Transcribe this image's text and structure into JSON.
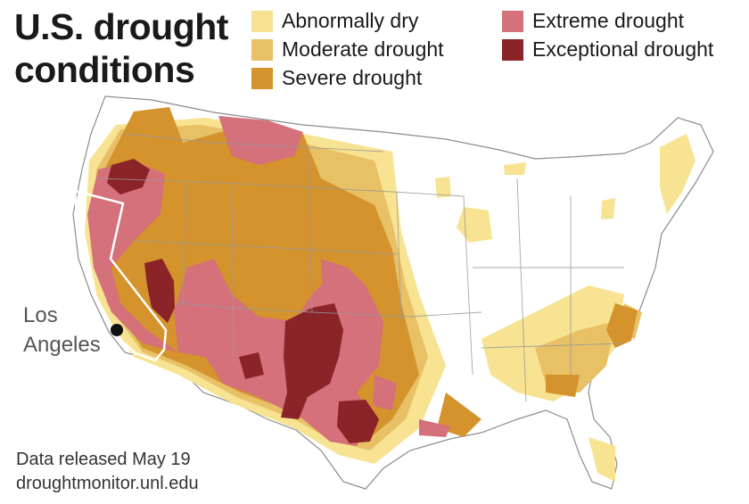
{
  "title": {
    "line1": "U.S. drought",
    "line2": "conditions"
  },
  "legend": [
    {
      "label": "Abnormally dry",
      "color": "#f7e391"
    },
    {
      "label": "Moderate drought",
      "color": "#e8c066"
    },
    {
      "label": "Severe drought",
      "color": "#d4932c"
    },
    {
      "label": "Extreme drought",
      "color": "#d4717a"
    },
    {
      "label": "Exceptional drought",
      "color": "#8a2428"
    }
  ],
  "city": {
    "line1": "Los",
    "line2": "Angeles",
    "marker_icon": "city-dot-icon"
  },
  "footer": {
    "release": "Data released May 19",
    "source": "droughtmonitor.unl.edu"
  },
  "colors": {
    "land": "#ffffff",
    "borders": "#9a9a9a",
    "california_outline": "#ffffff"
  }
}
